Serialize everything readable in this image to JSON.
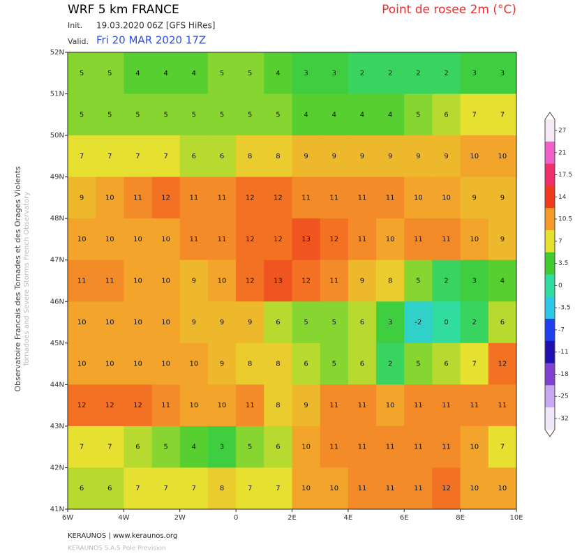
{
  "header": {
    "title": "WRF 5 km FRANCE",
    "product": "Point de rosee 2m (°C)",
    "init_label": "Init.",
    "init": "19.03.2020 06Z [GFS HiRes]",
    "valid_label": "Valid.",
    "valid": "Fri 20 MAR 2020 17Z"
  },
  "map": {
    "lat_ticks": [
      {
        "value": 52,
        "label": "52N"
      },
      {
        "value": 51,
        "label": "51N"
      },
      {
        "value": 50,
        "label": "50N"
      },
      {
        "value": 49,
        "label": "49N"
      },
      {
        "value": 48,
        "label": "48N"
      },
      {
        "value": 47,
        "label": "47N"
      },
      {
        "value": 46,
        "label": "46N"
      },
      {
        "value": 45,
        "label": "45N"
      },
      {
        "value": 44,
        "label": "44N"
      },
      {
        "value": 43,
        "label": "43N"
      },
      {
        "value": 42,
        "label": "42N"
      },
      {
        "value": 41,
        "label": "41N"
      }
    ],
    "lon_ticks": [
      {
        "value": -6,
        "label": "6W"
      },
      {
        "value": -4,
        "label": "4W"
      },
      {
        "value": -2,
        "label": "2W"
      },
      0,
      {
        "value": 2,
        "label": "2E"
      },
      {
        "value": 4,
        "label": "4E"
      },
      {
        "value": 6,
        "label": "6E"
      },
      {
        "value": 8,
        "label": "8E"
      },
      {
        "value": 10,
        "label": "10E"
      }
    ],
    "values": [
      [
        5,
        5,
        4,
        4,
        4,
        5,
        5,
        4,
        3,
        3,
        2,
        2,
        2,
        2,
        3,
        3
      ],
      [
        5,
        5,
        5,
        5,
        5,
        5,
        5,
        5,
        4,
        4,
        4,
        4,
        5,
        6,
        7,
        7
      ],
      [
        7,
        7,
        7,
        7,
        6,
        6,
        8,
        8,
        9,
        9,
        9,
        9,
        9,
        9,
        10,
        10
      ],
      [
        9,
        10,
        11,
        12,
        11,
        11,
        12,
        12,
        11,
        11,
        11,
        11,
        10,
        10,
        9,
        9
      ],
      [
        10,
        10,
        10,
        10,
        11,
        11,
        12,
        12,
        13,
        12,
        11,
        10,
        11,
        11,
        10,
        9
      ],
      [
        11,
        11,
        10,
        10,
        9,
        10,
        12,
        13,
        12,
        11,
        9,
        8,
        5,
        2,
        3,
        4
      ],
      [
        10,
        10,
        10,
        10,
        9,
        9,
        9,
        6,
        5,
        5,
        6,
        3,
        -2,
        0,
        2,
        6
      ],
      [
        10,
        10,
        10,
        10,
        10,
        9,
        8,
        8,
        6,
        5,
        6,
        2,
        5,
        6,
        7,
        12
      ],
      [
        12,
        12,
        12,
        11,
        10,
        10,
        11,
        8,
        9,
        11,
        11,
        10,
        11,
        11,
        11,
        11
      ],
      [
        7,
        7,
        6,
        5,
        4,
        3,
        5,
        6,
        10,
        11,
        11,
        11,
        11,
        11,
        10,
        7
      ],
      [
        6,
        6,
        7,
        7,
        7,
        8,
        7,
        7,
        10,
        10,
        11,
        11,
        11,
        12,
        10,
        10
      ]
    ]
  },
  "colorbar": {
    "ticks": [
      27,
      21,
      17.5,
      14,
      10.5,
      7,
      3.5,
      0,
      -3.5,
      -7,
      -11,
      -18,
      -25,
      -32
    ],
    "colors": [
      "#f6e8f4",
      "#f060c8",
      "#f0306a",
      "#f03a1a",
      "#f49a2a",
      "#e6e030",
      "#40cc30",
      "#30dca0",
      "#30c8e8",
      "#2040f0",
      "#2010b0",
      "#8040d0",
      "#c8a8f0",
      "#f0e8f8"
    ]
  },
  "side": {
    "line1": "Observatoire Francais des Tornades et des Orages Violents",
    "line2": "Tornadoes and Severe Storms French Observatory"
  },
  "footer": {
    "line1": "KERAUNOS | www.keraunos.org",
    "line2": "KERAUNOS S.A.S Pole Prevision"
  }
}
